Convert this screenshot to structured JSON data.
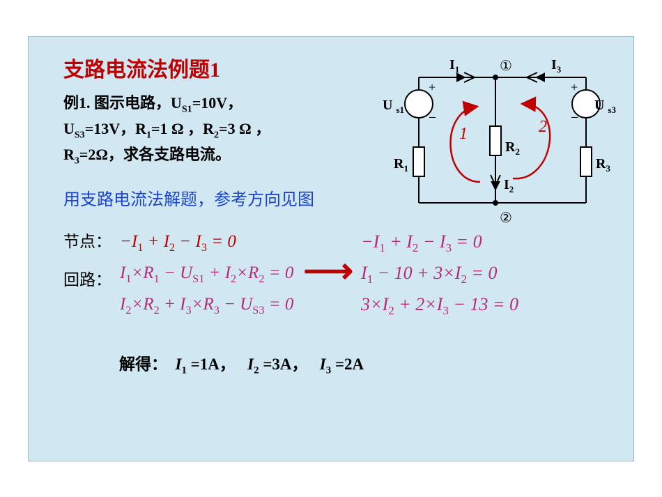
{
  "title": "支路电流法例题1",
  "problem": {
    "line1_a": "例1. 图示电路，U",
    "line1_b": "=10V，",
    "line2_a": "U",
    "line2_b": "=13V，R",
    "line2_c": "=1 Ω ，R",
    "line2_d": "=3 Ω ，",
    "line3_a": "R",
    "line3_b": "=2Ω，求各支路电流。"
  },
  "subs": {
    "s1": "S1",
    "s3": "S3",
    "r1": "1",
    "r2": "2",
    "r3": "3"
  },
  "note": "用支路电流法解题，参考方向见图",
  "labels": {
    "node": "节点：",
    "loop": "回路："
  },
  "eq_left": {
    "l1": "−I₁ + I₂ − I₃ = 0",
    "l2": "I₁×R₁ − U_S1 + I₂×R₂ = 0",
    "l3": "I₂×R₂ + I₃×R₃ − U_S3 = 0"
  },
  "arrow": "⟶",
  "eq_right": {
    "r1": "−I₁ + I₂ − I₃ = 0",
    "r2": "I₁ − 10 + 3×I₂ = 0",
    "r3": "3×I₂ + 2×I₃ − 13 = 0"
  },
  "answer": {
    "pre": "解得：",
    "a1": "I₁ =1A，",
    "a2": "I₂ =3A，",
    "a3": "I₃ =2A"
  },
  "circuit": {
    "I1": "I₁",
    "I3": "I₃",
    "I2": "I₂",
    "node1": "①",
    "node2": "②",
    "Us1": "U s1",
    "Us3": "U s3",
    "R1": "R₁",
    "R2": "R₂",
    "R3": "R₃",
    "loop1": "1",
    "loop2": "2",
    "colors": {
      "wire": "#000000",
      "arrow": "#000000",
      "loop": "#c00000",
      "text": "#000000",
      "fill": "#ffffff"
    }
  },
  "style": {
    "bg": "#d1e8f2",
    "title_color": "#c00000",
    "eq_magenta": "#b72a77",
    "note_color": "#1943d0",
    "title_fontsize": 30,
    "body_fontsize": 22,
    "eq_fontsize": 25
  }
}
